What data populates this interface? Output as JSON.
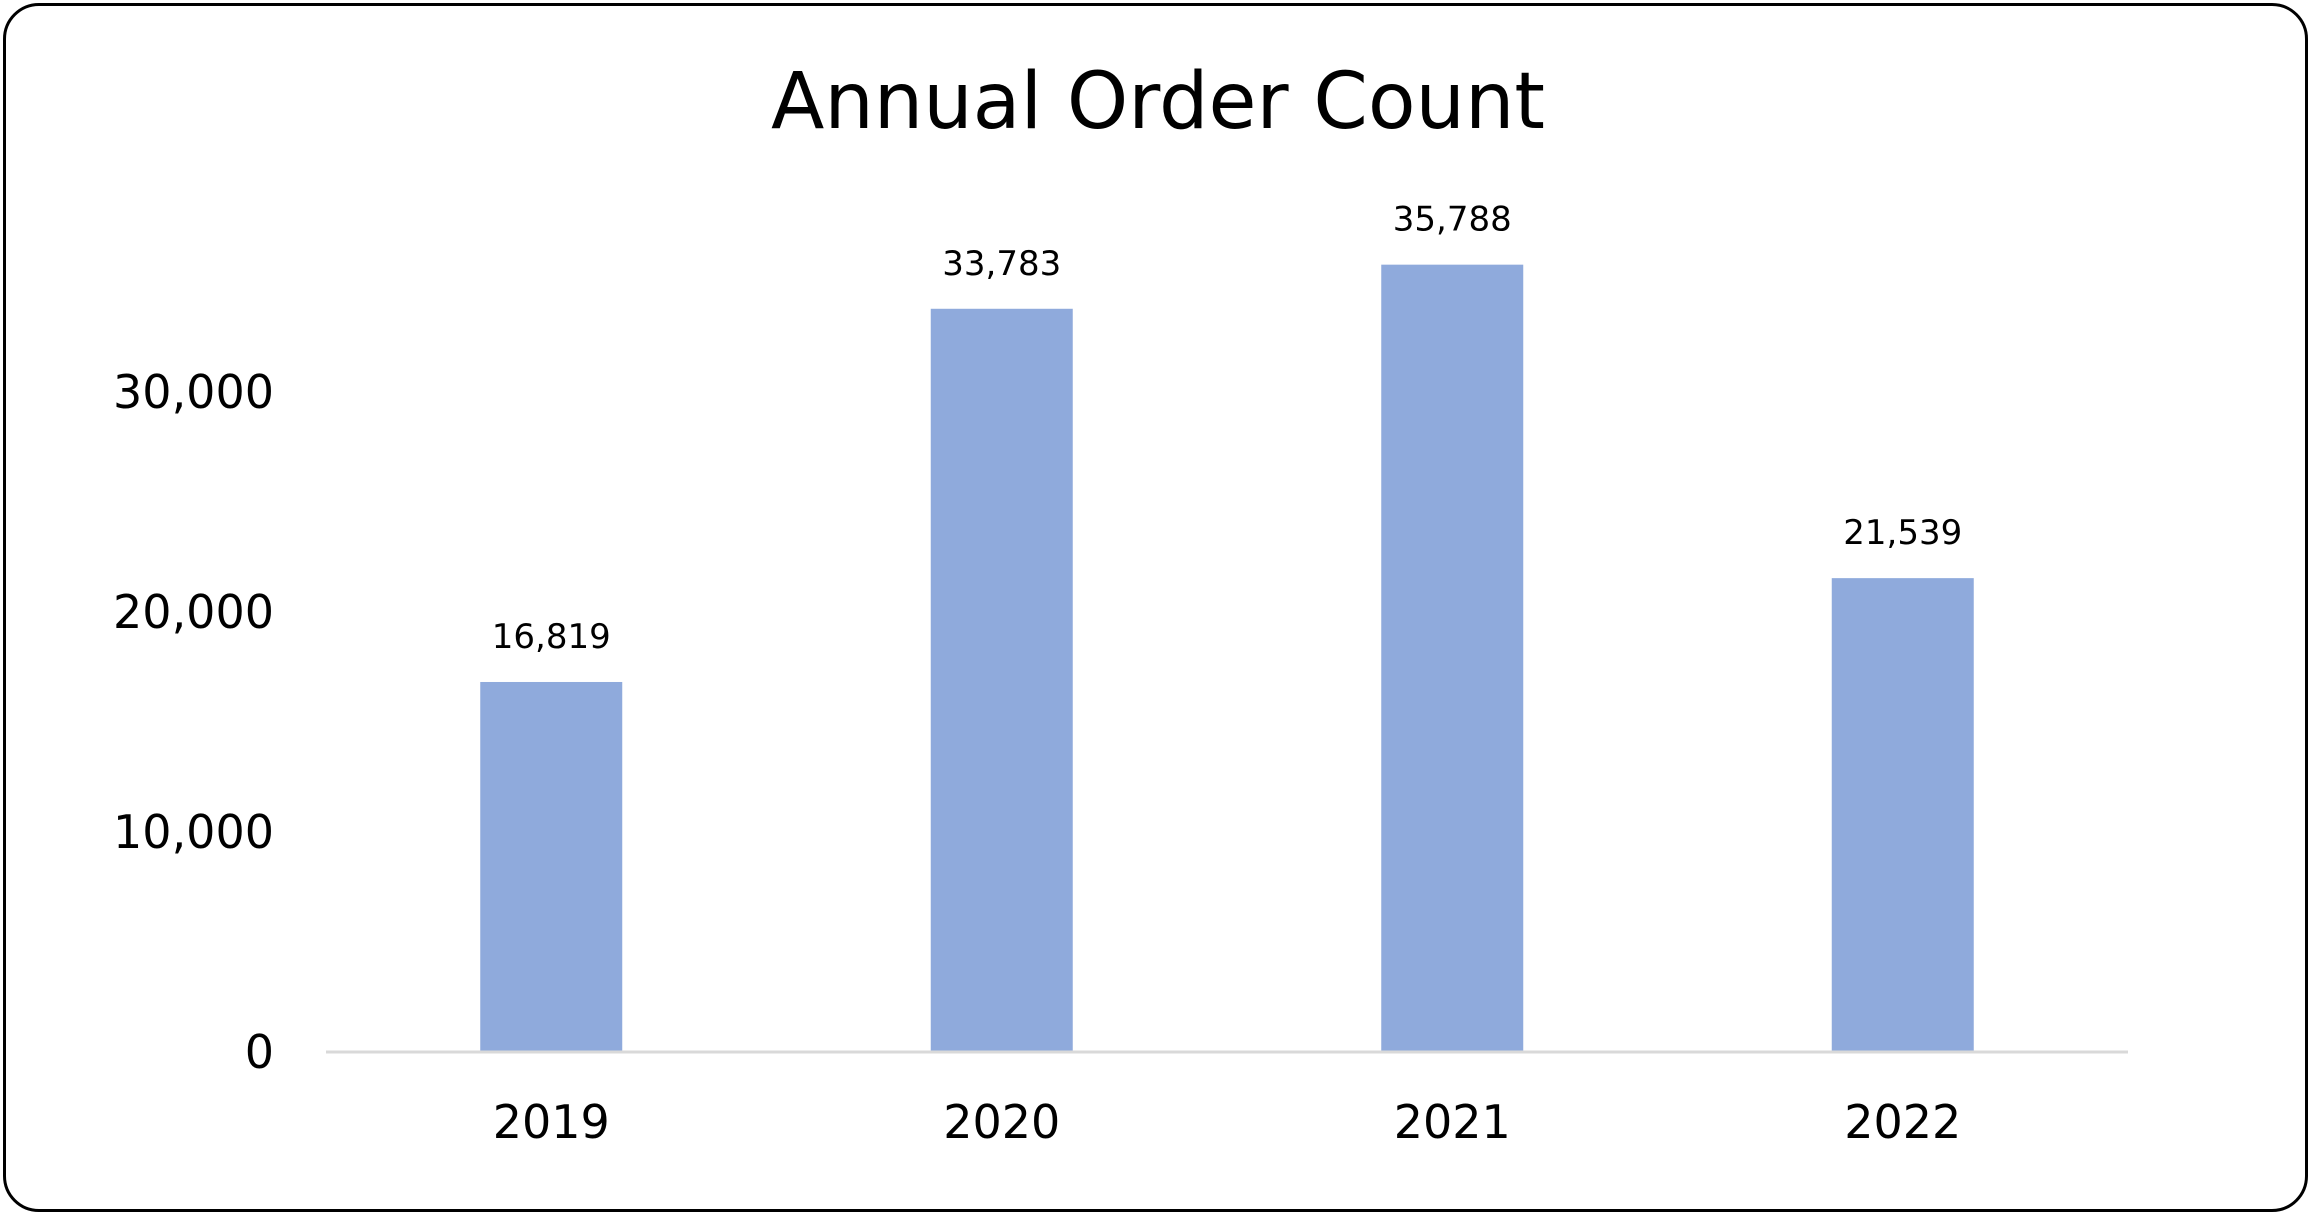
{
  "chart_data": {
    "type": "bar",
    "title": "Annual Order Count",
    "categories": [
      "2019",
      "2020",
      "2021",
      "2022"
    ],
    "values": [
      16819,
      33783,
      35788,
      21539
    ],
    "data_labels": [
      "16,819",
      "33,783",
      "35,788",
      "21,539"
    ],
    "y_ticks": [
      0,
      10000,
      20000,
      30000
    ],
    "y_tick_labels": [
      "0",
      "10,000",
      "20,000",
      "30,000"
    ],
    "ylim": [
      0,
      40000
    ],
    "xlabel": "",
    "ylabel": "",
    "grid": false,
    "legend": "none",
    "colors": {
      "bar": "#8faadc",
      "axis": "#d9d9d9",
      "border": "#000000"
    }
  }
}
